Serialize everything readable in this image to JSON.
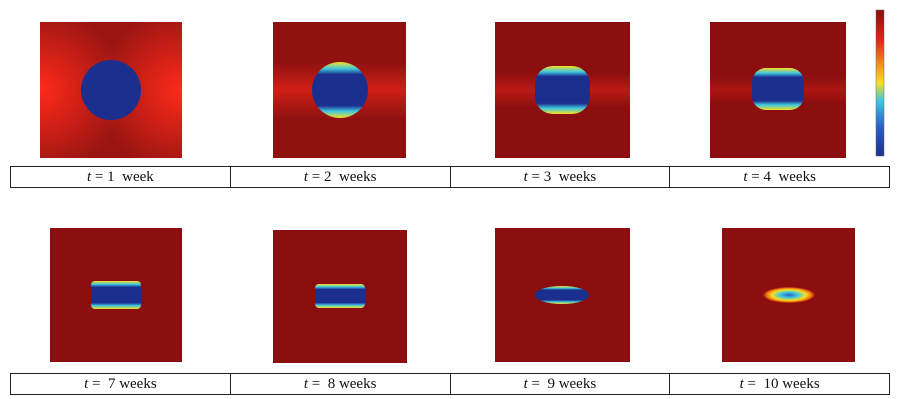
{
  "rows": [
    {
      "captions": [
        {
          "var": "t",
          "text": "= 1  week"
        },
        {
          "var": "t",
          "text": "= 2  weeks"
        },
        {
          "var": "t",
          "text": "= 3  weeks"
        },
        {
          "var": "t",
          "text": "= 4  weeks"
        }
      ]
    },
    {
      "captions": [
        {
          "var": "t",
          "text": "=  7 weeks"
        },
        {
          "var": "t",
          "text": "=  8 weeks"
        },
        {
          "var": "t",
          "text": "=  9 weeks"
        },
        {
          "var": "t",
          "text": "=  10 weeks"
        }
      ]
    }
  ]
}
